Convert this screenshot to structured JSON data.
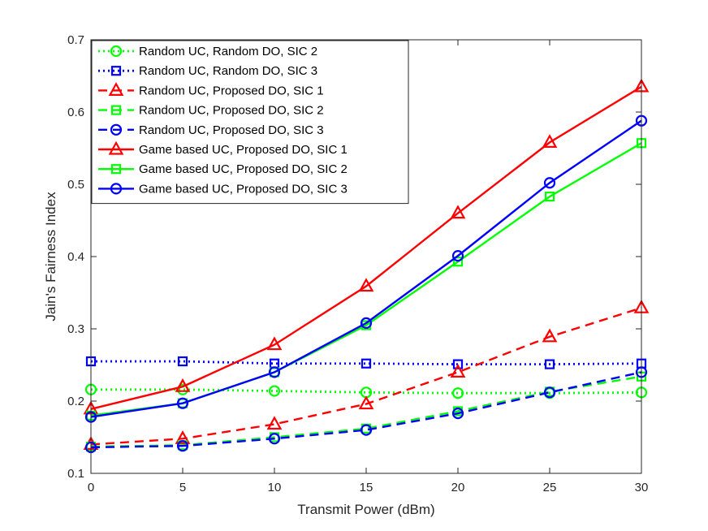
{
  "chart_data": {
    "type": "line",
    "title": "",
    "xlabel": "Transmit Power (dBm)",
    "ylabel": "Jain's Fairness Index",
    "x": [
      0,
      5,
      10,
      15,
      20,
      25,
      30
    ],
    "xlim": [
      0,
      30
    ],
    "ylim": [
      0.1,
      0.7
    ],
    "xticks": [
      "0",
      "5",
      "10",
      "15",
      "20",
      "25",
      "30"
    ],
    "yticks": [
      "0.1",
      "0.2",
      "0.3",
      "0.4",
      "0.5",
      "0.6",
      "0.7"
    ],
    "grid": false,
    "legend_position": "top-left",
    "series": [
      {
        "name": "Random UC, Random DO, SIC 2",
        "color": "#00ff00",
        "line": "dotted",
        "marker": "circle",
        "values": [
          0.216,
          0.216,
          0.214,
          0.212,
          0.211,
          0.211,
          0.212
        ]
      },
      {
        "name": "Random UC, Random DO, SIC 3",
        "color": "#0000ff",
        "line": "dotted",
        "marker": "square",
        "values": [
          0.255,
          0.255,
          0.252,
          0.252,
          0.251,
          0.251,
          0.252
        ]
      },
      {
        "name": "Random UC, Proposed DO, SIC 1",
        "color": "#ff0000",
        "line": "dashed",
        "marker": "triangle",
        "values": [
          0.14,
          0.148,
          0.168,
          0.196,
          0.24,
          0.289,
          0.329
        ]
      },
      {
        "name": "Random UC, Proposed DO, SIC 2",
        "color": "#00ff00",
        "line": "dashed",
        "marker": "square",
        "values": [
          0.137,
          0.139,
          0.15,
          0.162,
          0.186,
          0.213,
          0.234
        ]
      },
      {
        "name": "Random UC, Proposed DO, SIC 3",
        "color": "#0000ff",
        "line": "dashed",
        "marker": "circle",
        "values": [
          0.136,
          0.138,
          0.148,
          0.16,
          0.183,
          0.212,
          0.24
        ]
      },
      {
        "name": "Game based UC, Proposed DO, SIC 1",
        "color": "#ff0000",
        "line": "solid",
        "marker": "triangle",
        "values": [
          0.189,
          0.22,
          0.278,
          0.359,
          0.46,
          0.558,
          0.635
        ]
      },
      {
        "name": "Game based UC, Proposed DO, SIC 2",
        "color": "#00ff00",
        "line": "solid",
        "marker": "square",
        "values": [
          0.18,
          0.197,
          0.24,
          0.305,
          0.393,
          0.483,
          0.557
        ]
      },
      {
        "name": "Game based UC, Proposed DO, SIC 3",
        "color": "#0000ff",
        "line": "solid",
        "marker": "circle",
        "values": [
          0.178,
          0.197,
          0.24,
          0.308,
          0.401,
          0.502,
          0.588
        ]
      }
    ]
  }
}
